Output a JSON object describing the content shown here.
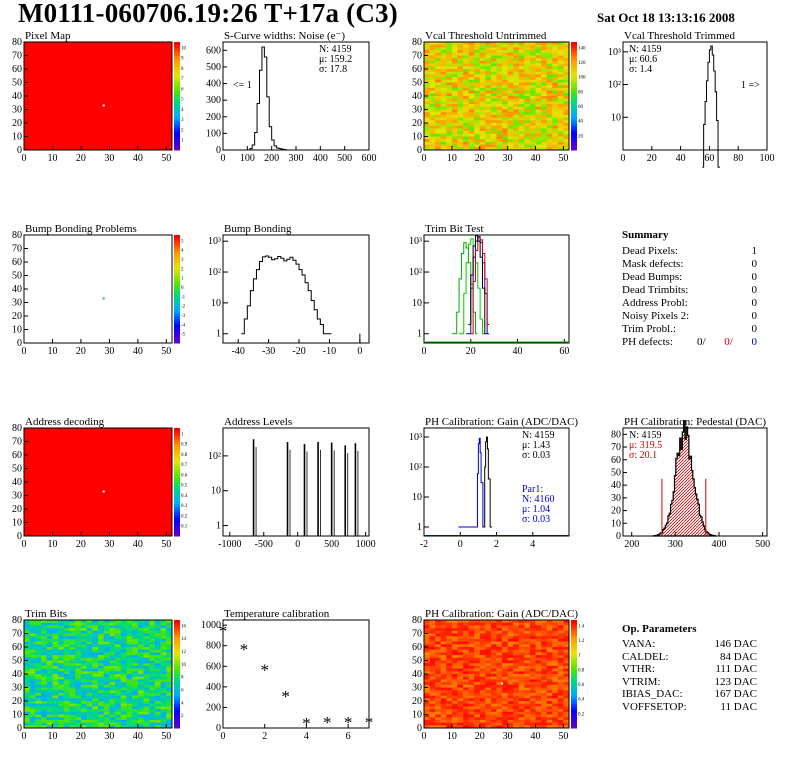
{
  "header": {
    "title": "M0111-060706.19:26 T+17a (C3)",
    "date": "Sat Oct 18 13:13:16 2008"
  },
  "summary": {
    "title": "Summary",
    "rows": [
      {
        "label": "Dead Pixels:",
        "value": "1"
      },
      {
        "label": "Mask defects:",
        "value": "0"
      },
      {
        "label": "Dead Bumps:",
        "value": "0"
      },
      {
        "label": "Dead Trimbits:",
        "value": "0"
      },
      {
        "label": "Address Probl:",
        "value": "0"
      },
      {
        "label": "Noisy Pixels 2:",
        "value": "0"
      },
      {
        "label": "Trim Probl.:",
        "value": "0"
      }
    ],
    "ph_defects": {
      "label": "PH defects:",
      "v1": "0/",
      "v2": "0/",
      "v3": "0",
      "c1": "#000000",
      "c2": "#cc0000",
      "c3": "#0000cc"
    }
  },
  "op_params": {
    "title": "Op. Parameters",
    "rows": [
      {
        "label": "VANA:",
        "value": "146 DAC"
      },
      {
        "label": "CALDEL:",
        "value": "84 DAC"
      },
      {
        "label": "VTHR:",
        "value": "111 DAC"
      },
      {
        "label": "VTRIM:",
        "value": "123 DAC"
      },
      {
        "label": "IBIAS_DAC:",
        "value": "167 DAC"
      },
      {
        "label": "VOFFSETOP:",
        "value": "11 DAC"
      }
    ]
  },
  "chart_data": [
    {
      "id": "pixel_map",
      "type": "heatmap",
      "title": "Pixel Map",
      "x_ticks": [
        0,
        10,
        20,
        30,
        40,
        50
      ],
      "y_ticks": [
        0,
        10,
        20,
        30,
        40,
        50,
        60,
        70,
        80
      ],
      "xlim": [
        0,
        52
      ],
      "ylim": [
        0,
        80
      ],
      "fill": "uniform-high",
      "marker": {
        "x": 28,
        "y": 33
      },
      "z_ticks": [
        "1",
        "2",
        "3",
        "4",
        "5",
        "6",
        "7",
        "8",
        "9",
        "10"
      ]
    },
    {
      "id": "scurve",
      "type": "line",
      "title": "S-Curve widths: Noise (e⁻)",
      "x_ticks": [
        0,
        100,
        200,
        300,
        400,
        500,
        600
      ],
      "y_ticks": [
        0,
        100,
        200,
        300,
        400,
        500,
        600
      ],
      "xlim": [
        0,
        600
      ],
      "ylim": [
        0,
        650
      ],
      "stats": [
        "N: 4159",
        "μ: 159.2",
        "σ: 17.8"
      ],
      "annotation": "<= 1",
      "x": [
        100,
        110,
        120,
        130,
        140,
        150,
        160,
        170,
        180,
        190,
        200,
        210,
        220,
        230,
        240,
        250,
        260
      ],
      "values": [
        0,
        8,
        30,
        105,
        280,
        480,
        620,
        560,
        320,
        140,
        60,
        25,
        12,
        8,
        5,
        2,
        0
      ]
    },
    {
      "id": "vcal_untrimmed",
      "type": "heatmap",
      "title": "Vcal Threshold Untrimmed",
      "x_ticks": [
        0,
        10,
        20,
        30,
        40,
        50
      ],
      "y_ticks": [
        0,
        10,
        20,
        30,
        40,
        50,
        60,
        70,
        80
      ],
      "xlim": [
        0,
        52
      ],
      "ylim": [
        0,
        80
      ],
      "fill": "noisy-mid",
      "z_ticks": [
        "20",
        "40",
        "60",
        "80",
        "100",
        "120",
        "140"
      ]
    },
    {
      "id": "vcal_trimmed",
      "type": "line",
      "title": "Vcal Threshold Trimmed",
      "log": true,
      "x_ticks": [
        0,
        20,
        40,
        60,
        80,
        100
      ],
      "y_ticks": [
        "10",
        "10²",
        "10³"
      ],
      "xlim": [
        0,
        100
      ],
      "ylim_log": [
        0,
        3.3
      ],
      "stats": [
        "N: 4159",
        "μ: 60.6",
        "σ: 1.4"
      ],
      "annotation": "1 =>",
      "x": [
        55,
        56,
        57,
        58,
        59,
        60,
        61,
        62,
        63,
        64,
        65,
        66
      ],
      "values": [
        0,
        6,
        30,
        130,
        480,
        1150,
        1500,
        800,
        260,
        60,
        8,
        0
      ]
    },
    {
      "id": "bump_problems",
      "type": "heatmap",
      "title": "Bump Bonding Problems",
      "x_ticks": [
        0,
        10,
        20,
        30,
        40,
        50
      ],
      "y_ticks": [
        0,
        10,
        20,
        30,
        40,
        50,
        60,
        70,
        80
      ],
      "xlim": [
        0,
        52
      ],
      "ylim": [
        0,
        80
      ],
      "fill": "empty",
      "marker": {
        "x": 28,
        "y": 33
      },
      "z_ticks": [
        "-5",
        "-4",
        "-3",
        "-2",
        "-1",
        "0",
        "1",
        "2",
        "3",
        "4",
        "5"
      ]
    },
    {
      "id": "bump_bonding",
      "type": "line",
      "title": "Bump Bonding",
      "log": true,
      "x_ticks": [
        -40,
        -30,
        -20,
        -10,
        0
      ],
      "y_ticks": [
        "1",
        "10",
        "10²",
        "10³"
      ],
      "xlim": [
        -45,
        3
      ],
      "ylim_log": [
        -0.3,
        3.2
      ],
      "x": [
        -39,
        -38,
        -37,
        -36,
        -35,
        -34,
        -33,
        -32,
        -31,
        -30,
        -29,
        -28,
        -27,
        -26,
        -25,
        -24,
        -23,
        -22,
        -21,
        -20,
        -19,
        -18,
        -17,
        -16,
        -15,
        -14,
        -13,
        -12,
        -11,
        -10
      ],
      "values": [
        1,
        3,
        8,
        25,
        60,
        120,
        220,
        310,
        330,
        300,
        250,
        270,
        320,
        280,
        230,
        260,
        300,
        240,
        180,
        120,
        80,
        45,
        25,
        12,
        6,
        3,
        2,
        1,
        1,
        1
      ]
    },
    {
      "id": "trim_bit_test",
      "type": "line",
      "title": "Trim Bit Test",
      "log": true,
      "x_ticks": [
        0,
        20,
        40,
        60
      ],
      "y_ticks": [
        "1",
        "10",
        "10²",
        "10³"
      ],
      "xlim": [
        0,
        62
      ],
      "ylim_log": [
        -0.3,
        3.2
      ],
      "series": [
        {
          "color": "#00aa00",
          "x": [
            12,
            14,
            15,
            16,
            17,
            18,
            19,
            20,
            21,
            22
          ],
          "values": [
            1,
            5,
            60,
            400,
            900,
            600,
            200,
            40,
            5,
            1
          ]
        },
        {
          "color": "#00cc00",
          "x": [
            15,
            17,
            18,
            19,
            20,
            21,
            22,
            23,
            24,
            25
          ],
          "values": [
            1,
            20,
            200,
            800,
            1200,
            700,
            200,
            30,
            3,
            1
          ]
        },
        {
          "color": "#0000cc",
          "x": [
            18,
            20,
            21,
            22,
            23,
            24,
            25,
            26,
            27
          ],
          "values": [
            1,
            30,
            300,
            1000,
            1400,
            900,
            200,
            20,
            1
          ]
        },
        {
          "color": "#cc0000",
          "x": [
            20,
            21,
            22,
            23,
            24,
            25,
            26,
            27
          ],
          "values": [
            1,
            50,
            500,
            1300,
            1100,
            400,
            60,
            2
          ]
        },
        {
          "color": "#000000",
          "x": [
            19,
            20,
            21,
            22,
            23,
            24,
            25,
            26
          ],
          "values": [
            2,
            80,
            700,
            1500,
            1000,
            300,
            30,
            1
          ]
        }
      ]
    },
    {
      "id": "address_decoding",
      "type": "heatmap",
      "title": "Address decoding",
      "x_ticks": [
        0,
        10,
        20,
        30,
        40,
        50
      ],
      "y_ticks": [
        0,
        10,
        20,
        30,
        40,
        50,
        60,
        70,
        80
      ],
      "xlim": [
        0,
        52
      ],
      "ylim": [
        0,
        80
      ],
      "fill": "uniform-high",
      "marker": {
        "x": 28,
        "y": 33
      },
      "z_ticks": [
        "0.1",
        "0.2",
        "0.3",
        "0.4",
        "0.5",
        "0.6",
        "0.7",
        "0.8",
        "0.9",
        "1"
      ]
    },
    {
      "id": "address_levels",
      "type": "bar",
      "title": "Address Levels",
      "log": true,
      "x_ticks": [
        -1000,
        -500,
        0,
        500,
        1000
      ],
      "y_ticks": [
        "1",
        "10",
        "10²"
      ],
      "xlim": [
        -1100,
        1050
      ],
      "ylim_log": [
        -0.3,
        2.8
      ],
      "peaks": [
        {
          "x": -650,
          "h": 300
        },
        {
          "x": -150,
          "h": 250
        },
        {
          "x": 100,
          "h": 220
        },
        {
          "x": 300,
          "h": 250
        },
        {
          "x": 500,
          "h": 240
        },
        {
          "x": 700,
          "h": 200
        },
        {
          "x": 850,
          "h": 230
        }
      ]
    },
    {
      "id": "ph_gain",
      "type": "line",
      "title": "PH Calibration: Gain (ADC/DAC)",
      "log": true,
      "x_ticks": [
        -2,
        0,
        2,
        4
      ],
      "y_ticks": [
        "1",
        "10",
        "10²",
        "10³"
      ],
      "xlim": [
        -2,
        6
      ],
      "ylim_log": [
        -0.3,
        3.3
      ],
      "stats": [
        "N: 4159",
        "μ: 1.43",
        "σ: 0.03"
      ],
      "stats2": [
        "Par1:",
        "N: 4160",
        "μ: 1.04",
        "σ: 0.03"
      ],
      "series": [
        {
          "color": "#0000cc",
          "x": [
            -0.1,
            0,
            0.85,
            0.95,
            1.0,
            1.05,
            1.1,
            1.15,
            1.25
          ],
          "values": [
            1,
            1,
            1,
            60,
            600,
            900,
            300,
            30,
            1
          ]
        },
        {
          "color": "#000000",
          "x": [
            1.25,
            1.35,
            1.4,
            1.45,
            1.5,
            1.55,
            1.65
          ],
          "values": [
            1,
            100,
            700,
            1000,
            400,
            40,
            1
          ]
        }
      ]
    },
    {
      "id": "ph_pedestal",
      "type": "bar",
      "title": "PH Calibration: Pedestal (DAC)",
      "x_ticks": [
        200,
        300,
        400,
        500
      ],
      "xlim": [
        180,
        510
      ],
      "ylim": [
        0,
        85
      ],
      "stats": [
        "N: 4159",
        "μ: 319.5",
        "σ: 20.1"
      ],
      "mu": 319.5,
      "sigma": 20.1,
      "peak": 82,
      "y_ticks": [
        0,
        10,
        20,
        30,
        40,
        50,
        60,
        70,
        80
      ]
    },
    {
      "id": "trim_bits",
      "type": "heatmap",
      "title": "Trim Bits",
      "x_ticks": [
        0,
        10,
        20,
        30,
        40,
        50
      ],
      "y_ticks": [
        0,
        10,
        20,
        30,
        40,
        50,
        60,
        70,
        80
      ],
      "xlim": [
        0,
        52
      ],
      "ylim": [
        0,
        80
      ],
      "fill": "noisy-green",
      "z_ticks": [
        "2",
        "4",
        "6",
        "8",
        "10",
        "12",
        "14",
        "16"
      ]
    },
    {
      "id": "temp_calibration",
      "type": "scatter",
      "title": "Temperature calibration",
      "x_ticks": [
        0,
        2,
        4,
        6
      ],
      "y_ticks": [
        0,
        200,
        400,
        600,
        800,
        1000
      ],
      "xlim": [
        0,
        7
      ],
      "ylim": [
        0,
        1050
      ],
      "x": [
        0,
        1,
        2,
        3,
        4,
        5,
        6,
        7
      ],
      "values": [
        960,
        780,
        580,
        320,
        60,
        70,
        70,
        70
      ]
    },
    {
      "id": "ph_gain_map",
      "type": "heatmap",
      "title": "PH Calibration: Gain (ADC/DAC)",
      "x_ticks": [
        0,
        10,
        20,
        30,
        40,
        50
      ],
      "y_ticks": [
        0,
        10,
        20,
        30,
        40,
        50,
        60,
        70,
        80
      ],
      "xlim": [
        0,
        52
      ],
      "ylim": [
        0,
        80
      ],
      "fill": "noisy-high",
      "marker": {
        "x": 28,
        "y": 33
      },
      "z_ticks": [
        "0.2",
        "0.4",
        "0.6",
        "0.8",
        "1",
        "1.2",
        "1.4"
      ]
    }
  ]
}
